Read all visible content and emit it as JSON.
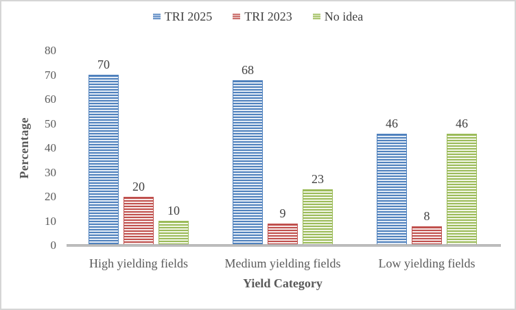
{
  "chart_data": {
    "type": "bar",
    "title": "",
    "categories": [
      "High yielding fields",
      "Medium yielding fields",
      "Low yielding fields"
    ],
    "series": [
      {
        "name": "TRI 2025",
        "values": [
          70,
          68,
          46
        ],
        "color": "#4F81BD",
        "light": "#CBDAEE"
      },
      {
        "name": "TRI 2023",
        "values": [
          20,
          9,
          8
        ],
        "color": "#C0504D",
        "light": "#F0D7D6"
      },
      {
        "name": "No idea",
        "values": [
          10,
          23,
          46
        ],
        "color": "#9BBB59",
        "light": "#E6EECF"
      }
    ],
    "xlabel": "Yield Category",
    "ylabel": "Percentage",
    "ylim": [
      0,
      80
    ],
    "ytick_step": 10,
    "yticks": [
      0,
      10,
      20,
      30,
      40,
      50,
      60,
      70,
      80
    ],
    "grid": false,
    "legend_position": "top",
    "data_labels": true
  },
  "colors": {
    "axis_text": "#595959",
    "label_text": "#404040",
    "axis_line": "#BFBFBF",
    "border": "#D5D5D5",
    "background": "#FFFFFF"
  }
}
